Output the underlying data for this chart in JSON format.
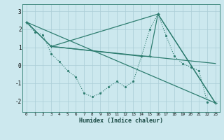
{
  "xlabel": "Humidex (Indice chaleur)",
  "bg_color": "#cce8ee",
  "line_color": "#2e7d70",
  "grid_color": "#aacdd6",
  "xlim": [
    -0.5,
    23.5
  ],
  "ylim": [
    -2.6,
    3.4
  ],
  "yticks": [
    -2,
    -1,
    0,
    1,
    2,
    3
  ],
  "xticks": [
    0,
    1,
    2,
    3,
    4,
    5,
    6,
    7,
    8,
    9,
    10,
    11,
    12,
    13,
    14,
    15,
    16,
    17,
    18,
    19,
    20,
    21,
    22,
    23
  ],
  "series": [
    {
      "x": [
        0,
        1,
        2,
        3,
        4,
        5,
        6,
        7,
        8,
        9,
        10,
        11,
        12,
        13,
        14,
        15,
        16,
        17,
        18,
        19,
        20,
        21,
        22
      ],
      "y": [
        2.4,
        1.85,
        1.7,
        0.65,
        0.2,
        -0.3,
        -0.65,
        -1.55,
        -1.75,
        -1.55,
        -1.2,
        -0.9,
        -1.2,
        -0.9,
        0.5,
        2.0,
        2.85,
        1.65,
        0.5,
        0.1,
        -0.1,
        -0.3,
        -2.05
      ],
      "style": "dotted",
      "marker": "dot"
    },
    {
      "x": [
        0,
        3,
        16,
        23
      ],
      "y": [
        2.4,
        1.05,
        2.85,
        -2.1
      ],
      "style": "solid",
      "marker": "cross"
    },
    {
      "x": [
        0,
        3,
        14,
        15,
        16,
        23
      ],
      "y": [
        2.4,
        1.05,
        0.5,
        0.5,
        2.85,
        -2.1
      ],
      "style": "solid",
      "marker": "cross"
    },
    {
      "x": [
        0,
        23
      ],
      "y": [
        2.4,
        -2.1
      ],
      "style": "solid",
      "marker": "none"
    },
    {
      "x": [
        3,
        23
      ],
      "y": [
        1.05,
        0.1
      ],
      "style": "solid",
      "marker": "none"
    }
  ]
}
